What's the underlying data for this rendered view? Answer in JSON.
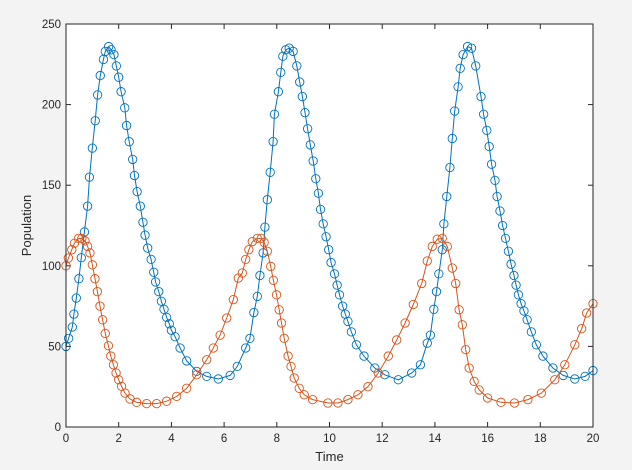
{
  "chart_data": {
    "type": "line",
    "title": "",
    "xlabel": "Time",
    "ylabel": "Population",
    "xlim": [
      0,
      20
    ],
    "ylim": [
      0,
      250
    ],
    "xticks": [
      0,
      2,
      4,
      6,
      8,
      10,
      12,
      14,
      16,
      18,
      20
    ],
    "yticks": [
      0,
      50,
      100,
      150,
      200,
      250
    ],
    "grid": false,
    "legend": "none",
    "marker": "circle",
    "series": [
      {
        "color": "#0072BD",
        "x": [
          0,
          0.1,
          0.24,
          0.3,
          0.39,
          0.49,
          0.58,
          0.7,
          0.82,
          0.89,
          1.0,
          1.11,
          1.2,
          1.3,
          1.42,
          1.49,
          1.62,
          1.71,
          1.82,
          1.91,
          2.0,
          2.09,
          2.23,
          2.3,
          2.4,
          2.53,
          2.6,
          2.7,
          2.82,
          2.92,
          3.0,
          3.1,
          3.23,
          3.33,
          3.4,
          3.52,
          3.62,
          3.72,
          3.82,
          3.92,
          4.0,
          4.14,
          4.33,
          4.58,
          4.96,
          5.34,
          5.78,
          6.23,
          6.5,
          6.82,
          6.98,
          7.13,
          7.26,
          7.36,
          7.48,
          7.55,
          7.64,
          7.75,
          7.86,
          7.91,
          8.06,
          8.15,
          8.23,
          8.34,
          8.47,
          8.62,
          8.76,
          8.87,
          8.97,
          9.07,
          9.17,
          9.27,
          9.38,
          9.48,
          9.58,
          9.66,
          9.76,
          9.87,
          9.97,
          10.06,
          10.19,
          10.29,
          10.38,
          10.5,
          10.6,
          10.7,
          10.83,
          11.02,
          11.31,
          11.72,
          12.1,
          12.61,
          13.12,
          13.45,
          13.71,
          13.83,
          13.96,
          14.06,
          14.15,
          14.28,
          14.34,
          14.45,
          14.57,
          14.66,
          14.75,
          14.88,
          14.96,
          15.07,
          15.24,
          15.39,
          15.55,
          15.75,
          15.85,
          15.97,
          16.06,
          16.15,
          16.28,
          16.36,
          16.47,
          16.57,
          16.68,
          16.79,
          16.89,
          17.0,
          17.08,
          17.17,
          17.27,
          17.38,
          17.5,
          17.66,
          17.85,
          18.1,
          18.48,
          18.87,
          19.31,
          19.7,
          20.0
        ],
        "y": [
          50,
          55,
          62,
          70,
          80,
          92,
          105,
          121,
          137,
          155,
          173,
          190,
          206,
          218,
          228,
          233,
          236,
          234,
          231,
          224,
          217,
          208,
          198,
          187,
          177,
          166,
          156,
          146,
          137,
          127,
          119,
          111,
          104,
          96,
          90,
          84,
          78,
          73,
          68,
          64,
          60,
          56,
          49,
          41,
          34.5,
          31.4,
          29.8,
          32,
          37.6,
          49,
          55,
          71,
          81,
          94,
          108,
          124,
          141,
          158,
          177,
          194,
          208,
          220,
          230,
          234,
          235,
          233,
          224,
          214,
          205,
          195,
          185,
          175,
          165,
          154,
          145,
          135,
          126,
          118,
          110,
          102,
          95,
          88,
          82,
          75,
          70,
          65.5,
          59,
          51,
          44,
          36.6,
          32.4,
          29.3,
          33.5,
          38.6,
          52,
          57,
          73,
          84,
          95,
          110,
          126,
          143,
          161,
          179,
          196,
          211,
          222.5,
          231,
          236,
          235,
          224,
          205,
          194,
          184,
          174,
          163,
          153,
          143,
          134,
          125,
          117,
          109,
          101,
          94,
          88,
          82,
          76.5,
          72,
          66.5,
          59,
          51,
          44,
          36.6,
          32,
          29.8,
          31.4,
          35
        ]
      },
      {
        "color": "#D95319",
        "x": [
          0,
          0.09,
          0.22,
          0.32,
          0.47,
          0.6,
          0.72,
          0.82,
          0.91,
          1.0,
          1.1,
          1.19,
          1.29,
          1.39,
          1.49,
          1.61,
          1.7,
          1.8,
          1.9,
          2.0,
          2.11,
          2.24,
          2.43,
          2.68,
          3.06,
          3.44,
          3.82,
          4.2,
          4.58,
          4.96,
          5.34,
          5.59,
          5.85,
          6.1,
          6.35,
          6.54,
          6.69,
          6.82,
          6.94,
          7.07,
          7.26,
          7.41,
          7.52,
          7.64,
          7.77,
          7.87,
          7.99,
          8.09,
          8.18,
          8.28,
          8.43,
          8.54,
          8.66,
          8.85,
          9.04,
          9.36,
          9.94,
          10.32,
          10.7,
          11.08,
          11.46,
          11.85,
          12.23,
          12.55,
          12.87,
          13.18,
          13.5,
          13.71,
          13.9,
          14.09,
          14.28,
          14.47,
          14.66,
          14.79,
          14.92,
          15.04,
          15.17,
          15.3,
          15.49,
          15.68,
          16.0,
          16.51,
          17.02,
          17.53,
          18.04,
          18.55,
          18.93,
          19.31,
          19.57,
          19.76,
          20.0
        ],
        "y": [
          100,
          104.8,
          110,
          114,
          117,
          117,
          115.5,
          112,
          108,
          100.6,
          92,
          84,
          75,
          66.5,
          58,
          50.4,
          44,
          38.6,
          33.5,
          29.3,
          25.2,
          21,
          17.4,
          15.3,
          14.5,
          14.5,
          16,
          19,
          24,
          32.4,
          41.7,
          49,
          57,
          67.6,
          79,
          92.4,
          95.5,
          104,
          110,
          115,
          117,
          117,
          114.5,
          109,
          99.6,
          91,
          82,
          72.7,
          64.5,
          55,
          44,
          37.6,
          30.4,
          24,
          20,
          17,
          14.9,
          14.9,
          17,
          20,
          25,
          33.5,
          44,
          54,
          64.5,
          76,
          89,
          103,
          112,
          116.5,
          117,
          112,
          98.6,
          89,
          72.7,
          63.4,
          48,
          36.6,
          28.3,
          23,
          18,
          15.3,
          14.9,
          17,
          21,
          29.3,
          38.6,
          51,
          61,
          70.7,
          76.5
        ]
      }
    ]
  }
}
